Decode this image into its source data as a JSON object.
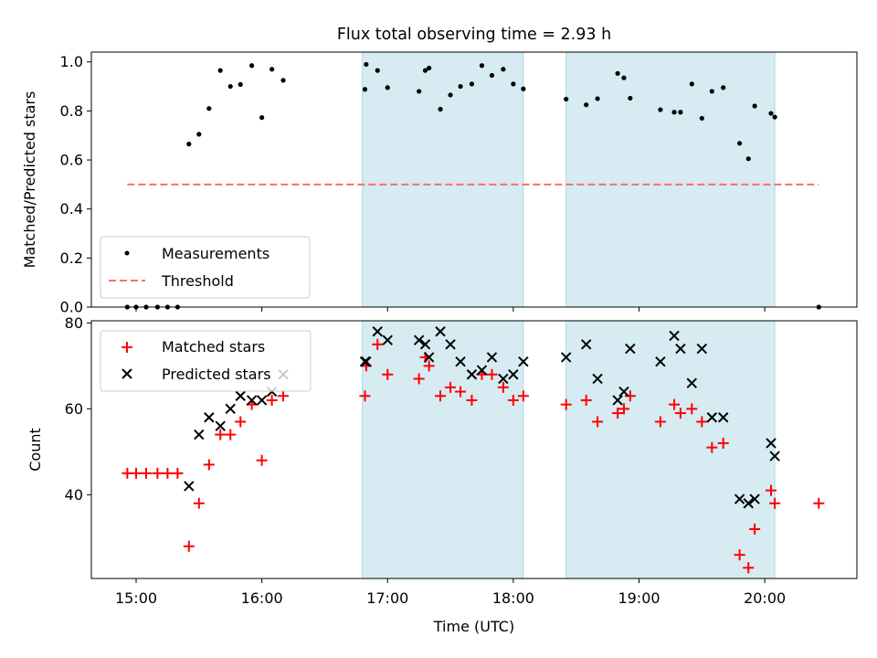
{
  "chart_data": [
    {
      "type": "scatter",
      "panel": "top",
      "title": "Flux total observing time = 2.93 h",
      "xlabel": "",
      "ylabel": "Matched/Predicted stars",
      "xlim": [
        14.644,
        20.733
      ],
      "ylim": [
        0.0,
        1.04
      ],
      "x_ticks": [
        15,
        16,
        17,
        18,
        19,
        20
      ],
      "y_ticks": [
        0.0,
        0.2,
        0.4,
        0.6,
        0.8,
        1.0
      ],
      "y_tick_labels": [
        "0.0",
        "0.2",
        "0.4",
        "0.6",
        "0.8",
        "1.0"
      ],
      "legend_position": "lower-left",
      "shaded_regions": [
        [
          16.8,
          18.08
        ],
        [
          18.42,
          20.08
        ]
      ],
      "shade_color": "#add8e6",
      "threshold": {
        "name": "Threshold",
        "value": 0.5,
        "x_start": 14.93,
        "x_end": 20.43,
        "color": "#ff6b6b"
      },
      "series": [
        {
          "name": "Measurements",
          "marker": "dot",
          "color": "#000000",
          "points": [
            [
              14.93,
              0.0
            ],
            [
              15.0,
              0.0
            ],
            [
              15.08,
              0.0
            ],
            [
              15.17,
              0.0
            ],
            [
              15.25,
              0.0
            ],
            [
              15.33,
              0.0
            ],
            [
              15.42,
              0.665
            ],
            [
              15.5,
              0.705
            ],
            [
              15.58,
              0.81
            ],
            [
              15.67,
              0.965
            ],
            [
              15.75,
              0.9
            ],
            [
              15.83,
              0.908
            ],
            [
              15.92,
              0.985
            ],
            [
              16.0,
              0.773
            ],
            [
              16.08,
              0.97
            ],
            [
              16.17,
              0.925
            ],
            [
              16.82,
              0.888
            ],
            [
              16.83,
              0.99
            ],
            [
              16.92,
              0.965
            ],
            [
              17.0,
              0.895
            ],
            [
              17.25,
              0.88
            ],
            [
              17.3,
              0.965
            ],
            [
              17.33,
              0.975
            ],
            [
              17.42,
              0.807
            ],
            [
              17.5,
              0.865
            ],
            [
              17.58,
              0.9
            ],
            [
              17.67,
              0.91
            ],
            [
              17.75,
              0.985
            ],
            [
              17.83,
              0.945
            ],
            [
              17.92,
              0.97
            ],
            [
              18.0,
              0.91
            ],
            [
              18.08,
              0.89
            ],
            [
              18.42,
              0.848
            ],
            [
              18.58,
              0.825
            ],
            [
              18.67,
              0.85
            ],
            [
              18.83,
              0.953
            ],
            [
              18.88,
              0.935
            ],
            [
              18.93,
              0.852
            ],
            [
              19.17,
              0.805
            ],
            [
              19.28,
              0.795
            ],
            [
              19.33,
              0.795
            ],
            [
              19.42,
              0.91
            ],
            [
              19.5,
              0.77
            ],
            [
              19.58,
              0.88
            ],
            [
              19.67,
              0.895
            ],
            [
              19.8,
              0.668
            ],
            [
              19.87,
              0.605
            ],
            [
              19.92,
              0.82
            ],
            [
              20.05,
              0.79
            ],
            [
              20.08,
              0.775
            ],
            [
              20.43,
              0.0
            ]
          ]
        }
      ]
    },
    {
      "type": "scatter",
      "panel": "bottom",
      "title": "",
      "xlabel": "Time (UTC)",
      "ylabel": "Count",
      "xlim": [
        14.644,
        20.733
      ],
      "ylim": [
        20.5,
        80.5
      ],
      "x_ticks": [
        15,
        16,
        17,
        18,
        19,
        20
      ],
      "x_tick_labels": [
        "15:00",
        "16:00",
        "17:00",
        "18:00",
        "19:00",
        "20:00"
      ],
      "y_ticks": [
        40,
        60,
        80
      ],
      "y_tick_labels": [
        "40",
        "60",
        "80"
      ],
      "legend_position": "upper-left",
      "shaded_regions": [
        [
          16.8,
          18.08
        ],
        [
          18.42,
          20.08
        ]
      ],
      "shade_color": "#add8e6",
      "series": [
        {
          "name": "Matched stars",
          "marker": "plus",
          "color": "#ff0000",
          "points": [
            [
              14.93,
              45
            ],
            [
              15.0,
              45
            ],
            [
              15.08,
              45
            ],
            [
              15.17,
              45
            ],
            [
              15.25,
              45
            ],
            [
              15.33,
              45
            ],
            [
              15.42,
              28
            ],
            [
              15.5,
              38
            ],
            [
              15.58,
              47
            ],
            [
              15.67,
              54
            ],
            [
              15.75,
              54
            ],
            [
              15.83,
              57
            ],
            [
              15.92,
              61
            ],
            [
              16.0,
              48
            ],
            [
              16.08,
              62
            ],
            [
              16.17,
              63
            ],
            [
              16.82,
              63
            ],
            [
              16.83,
              70
            ],
            [
              16.92,
              75
            ],
            [
              17.0,
              68
            ],
            [
              17.25,
              67
            ],
            [
              17.3,
              72
            ],
            [
              17.33,
              70
            ],
            [
              17.42,
              63
            ],
            [
              17.5,
              65
            ],
            [
              17.58,
              64
            ],
            [
              17.67,
              62
            ],
            [
              17.75,
              68
            ],
            [
              17.83,
              68
            ],
            [
              17.92,
              65
            ],
            [
              18.0,
              62
            ],
            [
              18.08,
              63
            ],
            [
              18.42,
              61
            ],
            [
              18.58,
              62
            ],
            [
              18.67,
              57
            ],
            [
              18.83,
              59
            ],
            [
              18.88,
              60
            ],
            [
              18.93,
              63
            ],
            [
              19.17,
              57
            ],
            [
              19.28,
              61
            ],
            [
              19.33,
              59
            ],
            [
              19.42,
              60
            ],
            [
              19.5,
              57
            ],
            [
              19.58,
              51
            ],
            [
              19.67,
              52
            ],
            [
              19.8,
              26
            ],
            [
              19.87,
              23
            ],
            [
              19.92,
              32
            ],
            [
              20.05,
              41
            ],
            [
              20.08,
              38
            ],
            [
              20.43,
              38
            ]
          ]
        },
        {
          "name": "Predicted stars",
          "marker": "x",
          "color": "#000000",
          "points": [
            [
              15.42,
              42
            ],
            [
              15.5,
              54
            ],
            [
              15.58,
              58
            ],
            [
              15.67,
              56
            ],
            [
              15.75,
              60
            ],
            [
              15.83,
              63
            ],
            [
              15.92,
              62
            ],
            [
              16.0,
              62
            ],
            [
              16.08,
              64
            ],
            [
              16.17,
              68
            ],
            [
              16.82,
              71
            ],
            [
              16.83,
              71
            ],
            [
              16.92,
              78
            ],
            [
              17.0,
              76
            ],
            [
              17.25,
              76
            ],
            [
              17.3,
              75
            ],
            [
              17.33,
              72
            ],
            [
              17.42,
              78
            ],
            [
              17.5,
              75
            ],
            [
              17.58,
              71
            ],
            [
              17.67,
              68
            ],
            [
              17.75,
              69
            ],
            [
              17.83,
              72
            ],
            [
              17.92,
              67
            ],
            [
              18.0,
              68
            ],
            [
              18.08,
              71
            ],
            [
              18.42,
              72
            ],
            [
              18.58,
              75
            ],
            [
              18.67,
              67
            ],
            [
              18.83,
              62
            ],
            [
              18.88,
              64
            ],
            [
              18.93,
              74
            ],
            [
              19.17,
              71
            ],
            [
              19.28,
              77
            ],
            [
              19.33,
              74
            ],
            [
              19.42,
              66
            ],
            [
              19.5,
              74
            ],
            [
              19.58,
              58
            ],
            [
              19.67,
              58
            ],
            [
              19.8,
              39
            ],
            [
              19.87,
              38
            ],
            [
              19.92,
              39
            ],
            [
              20.05,
              52
            ],
            [
              20.08,
              49
            ]
          ]
        }
      ]
    }
  ]
}
